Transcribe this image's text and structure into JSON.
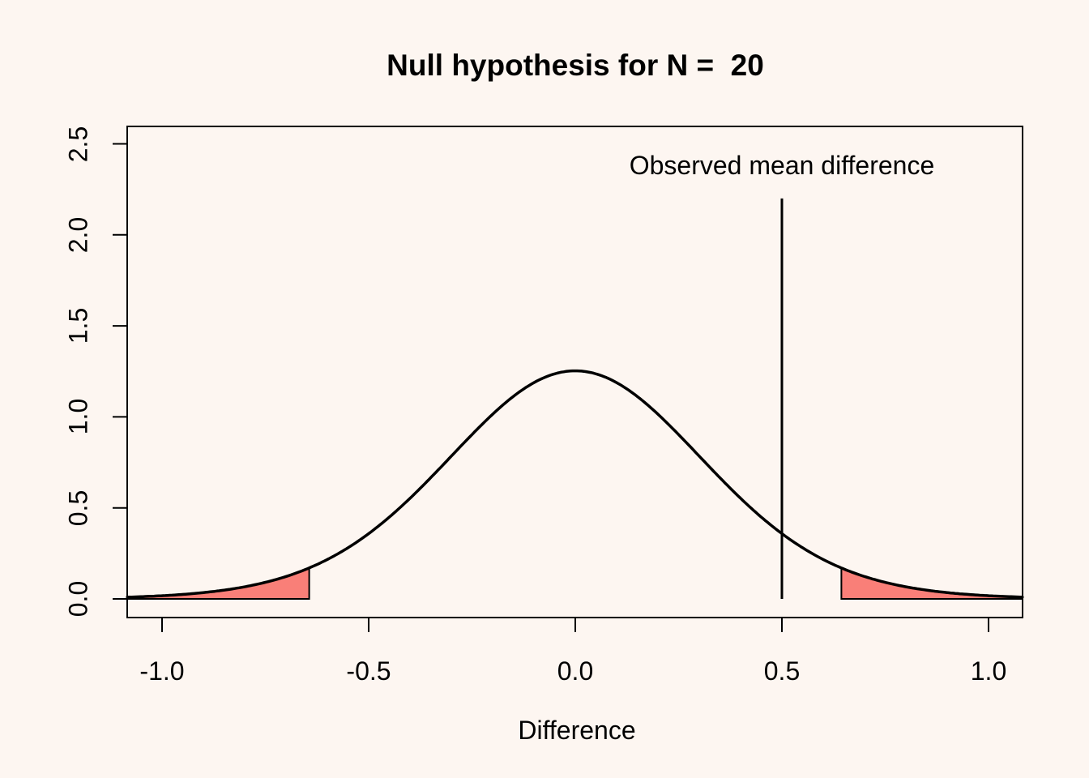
{
  "figure": {
    "background_color": "#fdf6f1"
  },
  "chart_data": {
    "type": "area",
    "title": "Null hypothesis for N =  20",
    "xlabel": "Difference",
    "ylabel": "",
    "annotation": "Observed mean difference",
    "xlim": [
      -1.084,
      1.082
    ],
    "ylim": [
      0,
      2.5
    ],
    "grid": false,
    "legend": null,
    "x_ticks": [
      {
        "value": -1.0,
        "label": "-1.0"
      },
      {
        "value": -0.5,
        "label": "-0.5"
      },
      {
        "value": 0.0,
        "label": "0.0"
      },
      {
        "value": 0.5,
        "label": "0.5"
      },
      {
        "value": 1.0,
        "label": "1.0"
      }
    ],
    "y_ticks": [
      {
        "value": 0.0,
        "label": "0.0"
      },
      {
        "value": 0.5,
        "label": "0.5"
      },
      {
        "value": 1.0,
        "label": "1.0"
      },
      {
        "value": 1.5,
        "label": "1.5"
      },
      {
        "value": 2.0,
        "label": "2.0"
      },
      {
        "value": 2.5,
        "label": "2.5"
      }
    ],
    "curve": {
      "distribution": "t",
      "df": 19,
      "center": 0,
      "scale": 0.3142,
      "peak_coef": 0.3937,
      "peak_density": 1.25
    },
    "critical_values": [
      -0.644,
      0.644
    ],
    "rejection_regions": [
      {
        "from": -1.084,
        "to": -0.644
      },
      {
        "from": 0.644,
        "to": 1.082
      }
    ],
    "observed_line": {
      "x": 0.5,
      "y_from": 0,
      "y_to": 2.2,
      "label": "Observed mean difference"
    },
    "colors": {
      "background": "#fdf6f1",
      "curve": "#000000",
      "axis": "#000000",
      "text": "#000000",
      "rejection_fill": "#f97f78",
      "rejection_border": "#000000",
      "observed_line": "#000000"
    }
  }
}
